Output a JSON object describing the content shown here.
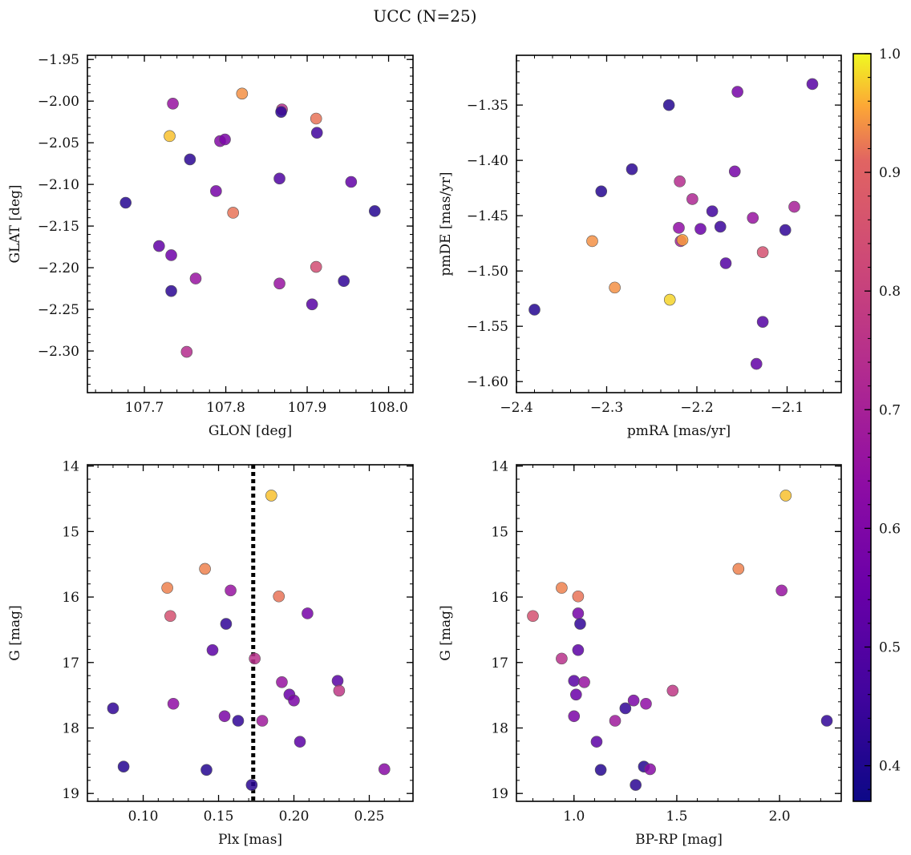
{
  "figure": {
    "title": "UCC (N=25)"
  },
  "colorbar": {
    "cmap": "plasma",
    "vmin": 0.37,
    "vmax": 1.0,
    "ticks": [
      0.4,
      0.5,
      0.6,
      0.7,
      0.8,
      0.9,
      1.0
    ],
    "tick_labels": [
      "0.4",
      "0.5",
      "0.6",
      "0.7",
      "0.8",
      "0.9",
      "1.0"
    ]
  },
  "chart_data": [
    {
      "type": "scatter",
      "id": "glon-glat",
      "xlabel": "GLON [deg]",
      "ylabel": "GLAT [deg]",
      "xlim": [
        107.63,
        108.03
      ],
      "ylim": [
        -2.35,
        -1.945
      ],
      "y_inverted": false,
      "xticks": [
        107.7,
        107.8,
        107.9,
        108.0
      ],
      "xtick_labels": [
        "107.7",
        "107.8",
        "107.9",
        "108.0"
      ],
      "yticks": [
        -2.3,
        -2.25,
        -2.2,
        -2.15,
        -2.1,
        -2.05,
        -2.0,
        -1.95
      ],
      "ytick_labels": [
        "−2.30",
        "−2.25",
        "−2.20",
        "−2.15",
        "−2.10",
        "−2.05",
        "−2.00",
        "−1.95"
      ],
      "points": [
        {
          "x": 107.735,
          "y": -2.003,
          "c": 0.66
        },
        {
          "x": 107.82,
          "y": -1.991,
          "c": 0.94
        },
        {
          "x": 107.869,
          "y": -2.01,
          "c": 0.74
        },
        {
          "x": 107.868,
          "y": -2.013,
          "c": 0.42
        },
        {
          "x": 107.911,
          "y": -2.021,
          "c": 0.92
        },
        {
          "x": 107.912,
          "y": -2.038,
          "c": 0.46
        },
        {
          "x": 107.731,
          "y": -2.042,
          "c": 0.97
        },
        {
          "x": 107.793,
          "y": -2.048,
          "c": 0.61
        },
        {
          "x": 107.799,
          "y": -2.046,
          "c": 0.59
        },
        {
          "x": 107.756,
          "y": -2.07,
          "c": 0.42
        },
        {
          "x": 107.866,
          "y": -2.093,
          "c": 0.49
        },
        {
          "x": 107.954,
          "y": -2.097,
          "c": 0.53
        },
        {
          "x": 107.788,
          "y": -2.108,
          "c": 0.58
        },
        {
          "x": 107.677,
          "y": -2.122,
          "c": 0.41
        },
        {
          "x": 107.809,
          "y": -2.134,
          "c": 0.92
        },
        {
          "x": 107.983,
          "y": -2.132,
          "c": 0.41
        },
        {
          "x": 107.718,
          "y": -2.174,
          "c": 0.53
        },
        {
          "x": 107.733,
          "y": -2.185,
          "c": 0.56
        },
        {
          "x": 107.911,
          "y": -2.199,
          "c": 0.84
        },
        {
          "x": 107.763,
          "y": -2.213,
          "c": 0.66
        },
        {
          "x": 107.866,
          "y": -2.219,
          "c": 0.66
        },
        {
          "x": 107.945,
          "y": -2.216,
          "c": 0.43
        },
        {
          "x": 107.733,
          "y": -2.228,
          "c": 0.42
        },
        {
          "x": 107.906,
          "y": -2.244,
          "c": 0.51
        },
        {
          "x": 107.752,
          "y": -2.301,
          "c": 0.74
        }
      ]
    },
    {
      "type": "scatter",
      "id": "pmra-pmde",
      "xlabel": "pmRA [mas/yr]",
      "ylabel": "pmDE [mas/yr]",
      "xlim": [
        -2.4,
        -2.04
      ],
      "ylim": [
        -1.61,
        -1.305
      ],
      "y_inverted": false,
      "xticks": [
        -2.4,
        -2.3,
        -2.2,
        -2.1
      ],
      "xtick_labels": [
        "−2.4",
        "−2.3",
        "−2.2",
        "−2.1"
      ],
      "yticks": [
        -1.6,
        -1.55,
        -1.5,
        -1.45,
        -1.4,
        -1.35
      ],
      "ytick_labels": [
        "−1.60",
        "−1.55",
        "−1.50",
        "−1.45",
        "−1.40",
        "−1.35"
      ],
      "points": [
        {
          "x": -2.072,
          "y": -1.331,
          "c": 0.51
        },
        {
          "x": -2.155,
          "y": -1.338,
          "c": 0.58
        },
        {
          "x": -2.231,
          "y": -1.35,
          "c": 0.41
        },
        {
          "x": -2.272,
          "y": -1.408,
          "c": 0.42
        },
        {
          "x": -2.158,
          "y": -1.41,
          "c": 0.58
        },
        {
          "x": -2.219,
          "y": -1.419,
          "c": 0.74
        },
        {
          "x": -2.306,
          "y": -1.428,
          "c": 0.41
        },
        {
          "x": -2.205,
          "y": -1.435,
          "c": 0.72
        },
        {
          "x": -2.092,
          "y": -1.442,
          "c": 0.7
        },
        {
          "x": -2.183,
          "y": -1.446,
          "c": 0.46
        },
        {
          "x": -2.138,
          "y": -1.452,
          "c": 0.66
        },
        {
          "x": -2.174,
          "y": -1.46,
          "c": 0.45
        },
        {
          "x": -2.22,
          "y": -1.461,
          "c": 0.64
        },
        {
          "x": -2.196,
          "y": -1.462,
          "c": 0.55
        },
        {
          "x": -2.102,
          "y": -1.463,
          "c": 0.43
        },
        {
          "x": -2.218,
          "y": -1.473,
          "c": 0.7
        },
        {
          "x": -2.316,
          "y": -1.473,
          "c": 0.94
        },
        {
          "x": -2.216,
          "y": -1.472,
          "c": 0.95
        },
        {
          "x": -2.127,
          "y": -1.483,
          "c": 0.85
        },
        {
          "x": -2.168,
          "y": -1.493,
          "c": 0.5
        },
        {
          "x": -2.291,
          "y": -1.515,
          "c": 0.94
        },
        {
          "x": -2.23,
          "y": -1.526,
          "c": 0.98
        },
        {
          "x": -2.38,
          "y": -1.535,
          "c": 0.41
        },
        {
          "x": -2.127,
          "y": -1.546,
          "c": 0.5
        },
        {
          "x": -2.134,
          "y": -1.584,
          "c": 0.53
        }
      ]
    },
    {
      "type": "scatter",
      "id": "plx-g",
      "xlabel": "Plx [mas]",
      "ylabel": "G [mag]",
      "xlim": [
        0.063,
        0.279
      ],
      "ylim": [
        19.12,
        13.98
      ],
      "y_inverted": true,
      "xticks": [
        0.1,
        0.15,
        0.2,
        0.25
      ],
      "xtick_labels": [
        "0.10",
        "0.15",
        "0.20",
        "0.25"
      ],
      "yticks": [
        14,
        15,
        16,
        17,
        18,
        19
      ],
      "ytick_labels": [
        "14",
        "15",
        "16",
        "17",
        "18",
        "19"
      ],
      "vline": {
        "x": 0.173,
        "style": "dotted"
      },
      "points": [
        {
          "x": 0.185,
          "y": 14.45,
          "c": 0.97
        },
        {
          "x": 0.141,
          "y": 15.57,
          "c": 0.93
        },
        {
          "x": 0.116,
          "y": 15.86,
          "c": 0.93
        },
        {
          "x": 0.158,
          "y": 15.9,
          "c": 0.66
        },
        {
          "x": 0.19,
          "y": 15.99,
          "c": 0.92
        },
        {
          "x": 0.209,
          "y": 16.25,
          "c": 0.58
        },
        {
          "x": 0.118,
          "y": 16.29,
          "c": 0.85
        },
        {
          "x": 0.155,
          "y": 16.41,
          "c": 0.43
        },
        {
          "x": 0.146,
          "y": 16.81,
          "c": 0.52
        },
        {
          "x": 0.174,
          "y": 16.94,
          "c": 0.75
        },
        {
          "x": 0.229,
          "y": 17.28,
          "c": 0.51
        },
        {
          "x": 0.192,
          "y": 17.3,
          "c": 0.66
        },
        {
          "x": 0.23,
          "y": 17.43,
          "c": 0.77
        },
        {
          "x": 0.197,
          "y": 17.49,
          "c": 0.55
        },
        {
          "x": 0.2,
          "y": 17.58,
          "c": 0.59
        },
        {
          "x": 0.12,
          "y": 17.63,
          "c": 0.64
        },
        {
          "x": 0.08,
          "y": 17.7,
          "c": 0.43
        },
        {
          "x": 0.154,
          "y": 17.82,
          "c": 0.59
        },
        {
          "x": 0.163,
          "y": 17.89,
          "c": 0.43
        },
        {
          "x": 0.179,
          "y": 17.89,
          "c": 0.68
        },
        {
          "x": 0.204,
          "y": 18.21,
          "c": 0.52
        },
        {
          "x": 0.087,
          "y": 18.59,
          "c": 0.41
        },
        {
          "x": 0.142,
          "y": 18.64,
          "c": 0.41
        },
        {
          "x": 0.26,
          "y": 18.63,
          "c": 0.62
        },
        {
          "x": 0.172,
          "y": 18.87,
          "c": 0.42
        }
      ]
    },
    {
      "type": "scatter",
      "id": "bprp-g",
      "xlabel": "BP-RP [mag]",
      "ylabel": "G [mag]",
      "xlim": [
        0.72,
        2.3
      ],
      "ylim": [
        19.12,
        13.98
      ],
      "y_inverted": true,
      "xticks": [
        1.0,
        1.5,
        2.0
      ],
      "xtick_labels": [
        "1.0",
        "1.5",
        "2.0"
      ],
      "yticks": [
        14,
        15,
        16,
        17,
        18,
        19
      ],
      "ytick_labels": [
        "14",
        "15",
        "16",
        "17",
        "18",
        "19"
      ],
      "points": [
        {
          "x": 2.03,
          "y": 14.45,
          "c": 0.97
        },
        {
          "x": 1.8,
          "y": 15.57,
          "c": 0.93
        },
        {
          "x": 0.94,
          "y": 15.86,
          "c": 0.93
        },
        {
          "x": 2.01,
          "y": 15.9,
          "c": 0.66
        },
        {
          "x": 1.02,
          "y": 15.99,
          "c": 0.92
        },
        {
          "x": 1.02,
          "y": 16.25,
          "c": 0.58
        },
        {
          "x": 0.8,
          "y": 16.29,
          "c": 0.85
        },
        {
          "x": 1.03,
          "y": 16.41,
          "c": 0.43
        },
        {
          "x": 1.02,
          "y": 16.81,
          "c": 0.52
        },
        {
          "x": 0.94,
          "y": 16.94,
          "c": 0.75
        },
        {
          "x": 1.0,
          "y": 17.28,
          "c": 0.51
        },
        {
          "x": 1.05,
          "y": 17.3,
          "c": 0.66
        },
        {
          "x": 1.48,
          "y": 17.43,
          "c": 0.77
        },
        {
          "x": 1.01,
          "y": 17.49,
          "c": 0.55
        },
        {
          "x": 1.29,
          "y": 17.58,
          "c": 0.59
        },
        {
          "x": 1.35,
          "y": 17.63,
          "c": 0.64
        },
        {
          "x": 1.25,
          "y": 17.7,
          "c": 0.43
        },
        {
          "x": 1.0,
          "y": 17.82,
          "c": 0.59
        },
        {
          "x": 2.23,
          "y": 17.89,
          "c": 0.43
        },
        {
          "x": 1.2,
          "y": 17.89,
          "c": 0.68
        },
        {
          "x": 1.11,
          "y": 18.21,
          "c": 0.52
        },
        {
          "x": 1.34,
          "y": 18.59,
          "c": 0.41
        },
        {
          "x": 1.13,
          "y": 18.64,
          "c": 0.41
        },
        {
          "x": 1.37,
          "y": 18.63,
          "c": 0.62
        },
        {
          "x": 1.3,
          "y": 18.87,
          "c": 0.42
        }
      ]
    }
  ]
}
